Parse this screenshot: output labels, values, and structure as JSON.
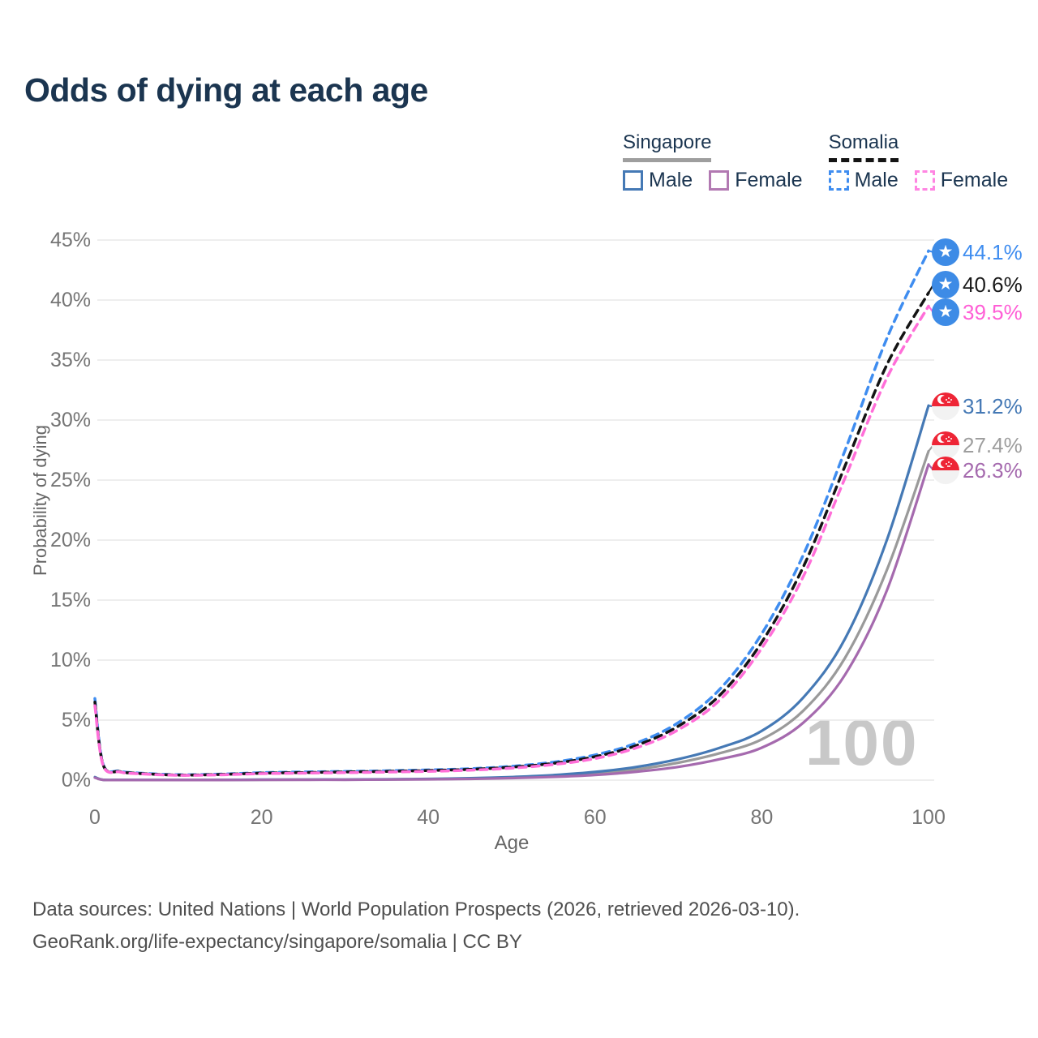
{
  "title": "Odds of dying at each age",
  "legend": {
    "groups": [
      {
        "id": "singapore",
        "label": "Singapore",
        "line_style": "solid",
        "underline_color": "#9e9e9e",
        "items": [
          {
            "label": "Male",
            "color": "#4579b5"
          },
          {
            "label": "Female",
            "color": "#b279b2"
          }
        ]
      },
      {
        "id": "somalia",
        "label": "Somalia",
        "line_style": "dashed",
        "underline_color": "#141414",
        "items": [
          {
            "label": "Male",
            "color": "#3f8df0"
          },
          {
            "label": "Female",
            "color": "#ff85e2"
          }
        ]
      }
    ]
  },
  "watermark": "100",
  "axes": {
    "y_label": "Probability of dying",
    "x_label": "Age",
    "y_tick_values": [
      0,
      5,
      10,
      15,
      20,
      25,
      30,
      35,
      40,
      45
    ],
    "y_tick_labels": [
      "0%",
      "5%",
      "10%",
      "15%",
      "20%",
      "25%",
      "30%",
      "35%",
      "40%",
      "45%"
    ],
    "x_tick_values": [
      0,
      20,
      40,
      60,
      80,
      100
    ],
    "x_tick_labels": [
      "0",
      "20",
      "40",
      "60",
      "80",
      "100"
    ]
  },
  "footer": {
    "line1": "Data sources: United Nations | World Population Prospects (2026, retrieved 2026-03-10).",
    "line2": "GeoRank.org/life-expectancy/singapore/somalia | CC BY"
  },
  "chart_data": {
    "type": "line",
    "title": "Odds of dying at each age",
    "xlabel": "Age",
    "ylabel": "Probability of dying",
    "xlim": [
      0,
      100
    ],
    "ylim": [
      0,
      45
    ],
    "grid": true,
    "legend_position": "top-right",
    "x": [
      0,
      1,
      3,
      5,
      10,
      15,
      20,
      25,
      30,
      35,
      40,
      45,
      50,
      55,
      60,
      65,
      70,
      75,
      80,
      85,
      90,
      95,
      100
    ],
    "series": [
      {
        "name": "Somalia Male",
        "country": "Somalia",
        "sex": "Male",
        "color": "#3f8df0",
        "dashed": true,
        "flag": "somalia",
        "end_label": "44.1%",
        "end_value": 44.1,
        "label_color": "#3f8df0",
        "values": [
          6.8,
          1.3,
          0.75,
          0.6,
          0.45,
          0.5,
          0.62,
          0.68,
          0.72,
          0.78,
          0.85,
          0.95,
          1.15,
          1.5,
          2.1,
          3.1,
          4.8,
          7.6,
          12.2,
          18.8,
          27.5,
          36.8,
          44.1
        ]
      },
      {
        "name": "Somalia Both sexes",
        "country": "Somalia",
        "sex": "Both sexes",
        "color": "#141414",
        "dashed": true,
        "flag": "somalia",
        "end_label": "40.6%",
        "end_value": 40.6,
        "label_color": "#1a1a1a",
        "values": [
          6.5,
          1.25,
          0.71,
          0.57,
          0.42,
          0.47,
          0.58,
          0.63,
          0.68,
          0.73,
          0.8,
          0.9,
          1.08,
          1.4,
          1.95,
          2.9,
          4.5,
          7.1,
          11.5,
          17.8,
          26.2,
          34.6,
          40.6
        ]
      },
      {
        "name": "Somalia Female",
        "country": "Somalia",
        "sex": "Female",
        "color": "#ff6ed8",
        "dashed": true,
        "flag": "somalia",
        "end_label": "39.5%",
        "end_value": 39.5,
        "label_color": "#ff5fd6",
        "values": [
          6.2,
          1.2,
          0.68,
          0.54,
          0.4,
          0.44,
          0.54,
          0.58,
          0.62,
          0.67,
          0.73,
          0.83,
          1.0,
          1.3,
          1.8,
          2.7,
          4.2,
          6.7,
          11.0,
          17.0,
          25.2,
          33.5,
          39.5
        ]
      },
      {
        "name": "Singapore Male",
        "country": "Singapore",
        "sex": "Male",
        "color": "#4579b5",
        "dashed": false,
        "flag": "singapore",
        "end_label": "31.2%",
        "end_value": 31.2,
        "label_color": "#4579b5",
        "values": [
          0.25,
          0.03,
          0.02,
          0.02,
          0.01,
          0.02,
          0.04,
          0.05,
          0.05,
          0.07,
          0.1,
          0.16,
          0.26,
          0.42,
          0.68,
          1.1,
          1.75,
          2.7,
          4.1,
          6.9,
          11.8,
          20.0,
          31.2
        ]
      },
      {
        "name": "Singapore Both sexes",
        "country": "Singapore",
        "sex": "Both sexes",
        "color": "#9a9a9a",
        "dashed": false,
        "flag": "singapore",
        "end_label": "27.4%",
        "end_value": 27.4,
        "label_color": "#9e9e9e",
        "values": [
          0.22,
          0.03,
          0.02,
          0.01,
          0.01,
          0.02,
          0.03,
          0.04,
          0.04,
          0.06,
          0.08,
          0.13,
          0.21,
          0.34,
          0.55,
          0.9,
          1.45,
          2.25,
          3.4,
          5.8,
          10.2,
          17.5,
          27.4
        ]
      },
      {
        "name": "Singapore Female",
        "country": "Singapore",
        "sex": "Female",
        "color": "#a56aae",
        "dashed": false,
        "flag": "singapore",
        "end_label": "26.3%",
        "end_value": 26.3,
        "label_color": "#a56aae",
        "values": [
          0.2,
          0.02,
          0.01,
          0.01,
          0.01,
          0.01,
          0.02,
          0.03,
          0.03,
          0.05,
          0.07,
          0.1,
          0.17,
          0.27,
          0.43,
          0.7,
          1.1,
          1.75,
          2.7,
          4.8,
          8.8,
          15.8,
          26.3
        ]
      }
    ]
  }
}
